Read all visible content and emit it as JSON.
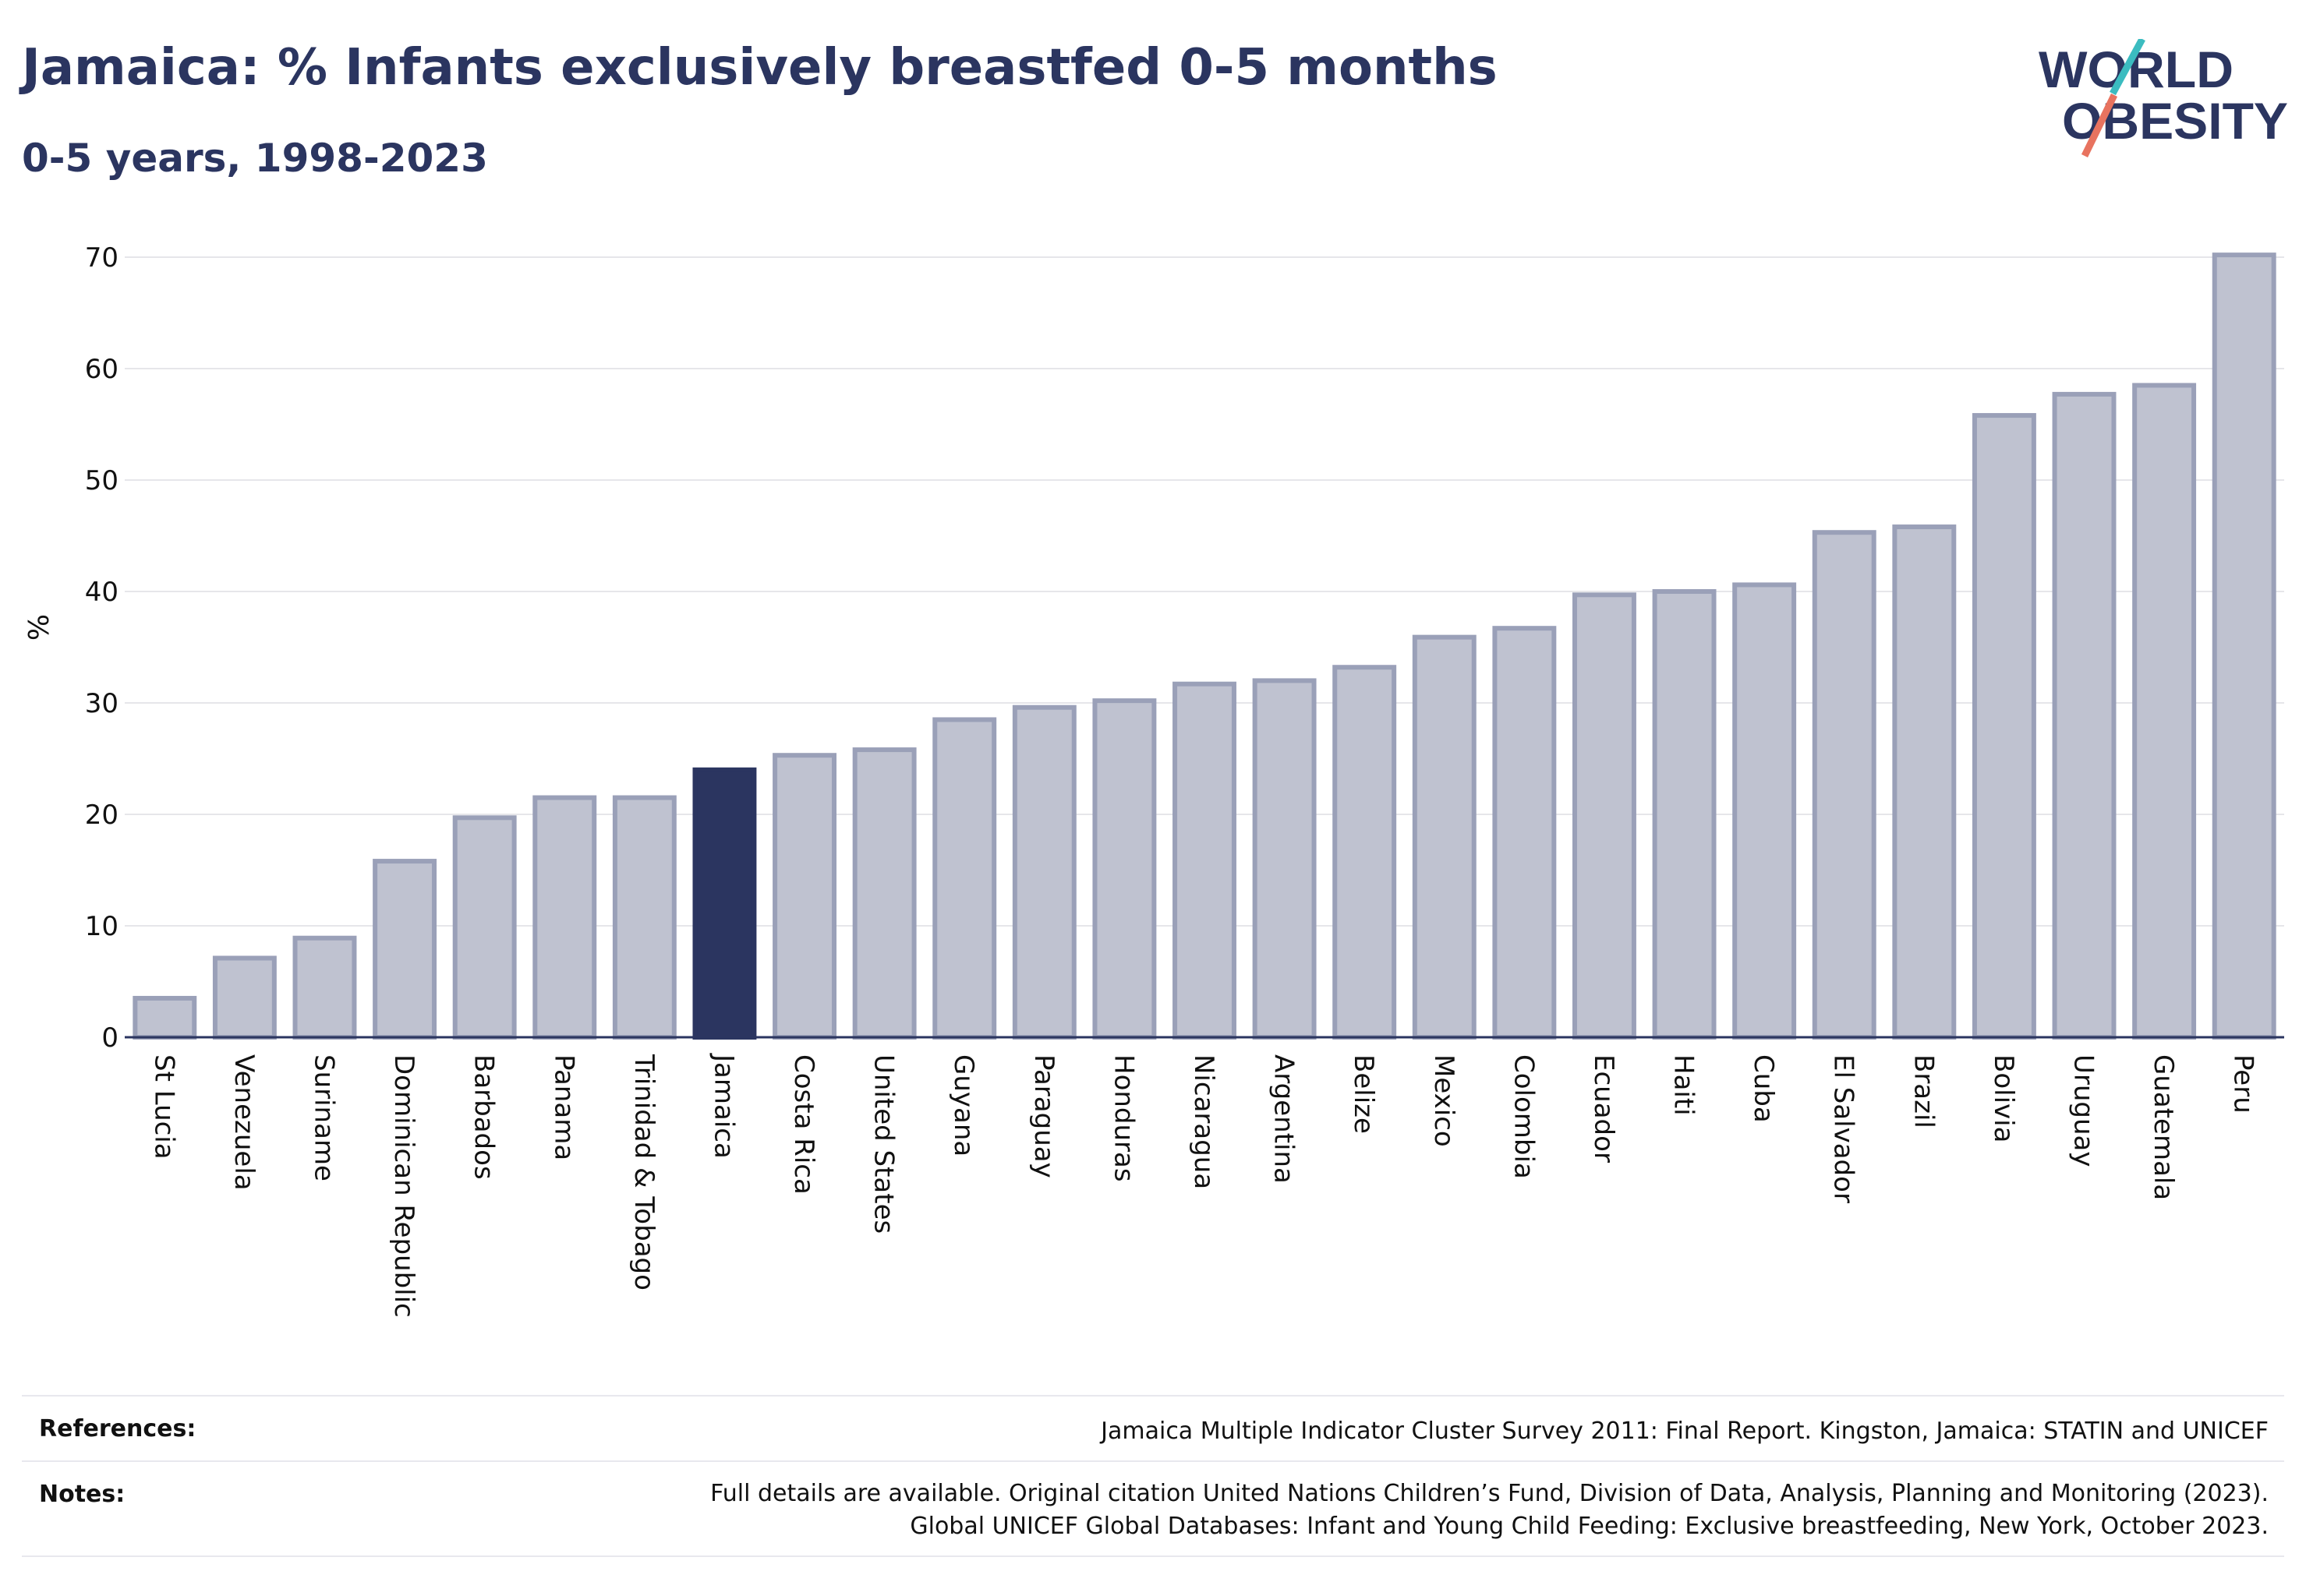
{
  "header": {
    "title": "Jamaica: % Infants exclusively breastfed 0-5 months",
    "subtitle": "0-5 years, 1998-2023"
  },
  "logo": {
    "line1": "WORLD",
    "line2": "OBESITY",
    "colors": {
      "text": "#2b3560",
      "slash_teal": "#3bbcc0",
      "slash_coral": "#e8735f"
    }
  },
  "chart_data": {
    "type": "bar",
    "title": "Jamaica: % Infants exclusively breastfed 0-5 months",
    "subtitle": "0-5 years, 1998-2023",
    "ylabel": "%",
    "xlabel": "",
    "ylim": [
      0,
      70
    ],
    "yticks": [
      0,
      10,
      20,
      30,
      40,
      50,
      60,
      70
    ],
    "grid": true,
    "highlight": "Jamaica",
    "colors": {
      "bar": "#bfc2d0",
      "bar_edge": "#9aa0b8",
      "highlight": "#2b3560"
    },
    "categories": [
      "St Lucia",
      "Venezuela",
      "Suriname",
      "Dominican Republic",
      "Barbados",
      "Panama",
      "Trinidad & Tobago",
      "Jamaica",
      "Costa Rica",
      "United States",
      "Guyana",
      "Paraguay",
      "Honduras",
      "Nicaragua",
      "Argentina",
      "Belize",
      "Mexico",
      "Colombia",
      "Ecuador",
      "Haiti",
      "Cuba",
      "El Salvador",
      "Brazil",
      "Bolivia",
      "Uruguay",
      "Guatemala",
      "Peru"
    ],
    "values": [
      3.5,
      7.1,
      8.9,
      15.8,
      19.7,
      21.5,
      21.5,
      24.0,
      25.3,
      25.8,
      28.5,
      29.6,
      30.2,
      31.7,
      32.0,
      33.2,
      35.9,
      36.7,
      39.7,
      40.0,
      40.6,
      45.3,
      45.8,
      55.8,
      57.7,
      58.5,
      70.2
    ]
  },
  "footer": {
    "references_label": "References:",
    "references_text": "Jamaica Multiple Indicator Cluster Survey 2011: Final Report. Kingston, Jamaica: STATIN and UNICEF",
    "notes_label": "Notes:",
    "notes_line1": "Full details are available. Original citation United Nations Children’s Fund, Division of Data, Analysis, Planning and Monitoring (2023).",
    "notes_line2": "Global UNICEF Global Databases: Infant and Young Child Feeding: Exclusive breastfeeding, New York, October 2023."
  }
}
